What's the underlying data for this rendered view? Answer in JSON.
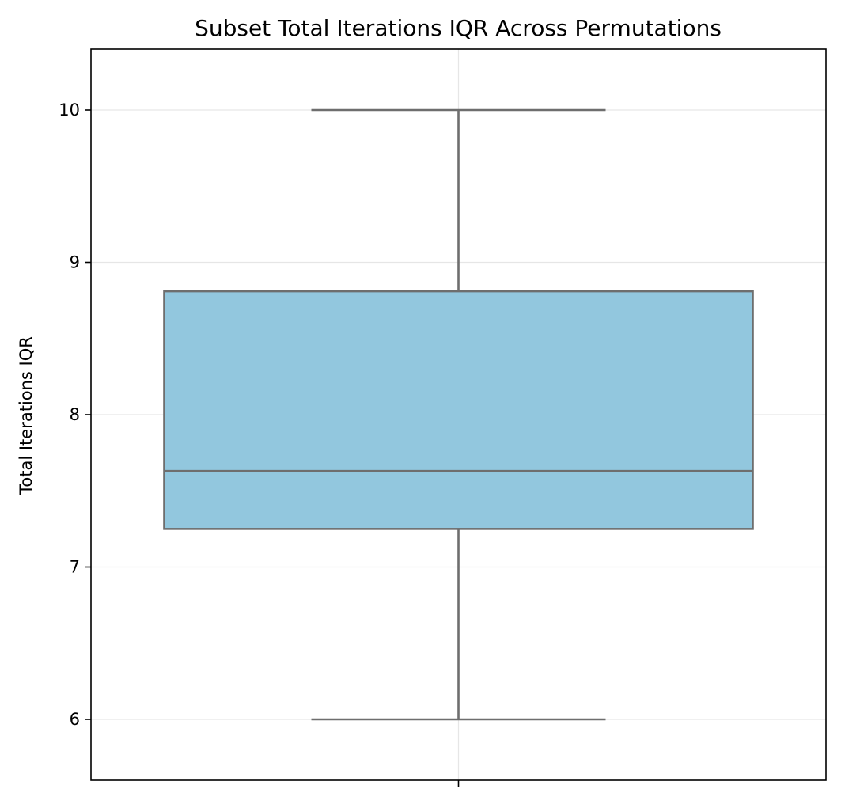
{
  "chart_data": {
    "type": "box",
    "title": "Subset Total Iterations IQR Across Permutations",
    "xlabel": "",
    "ylabel": "Total Iterations IQR",
    "ylim": [
      5.6,
      10.4
    ],
    "yticks": [
      6,
      7,
      8,
      9,
      10
    ],
    "yticklabels": [
      "6",
      "7",
      "8",
      "9",
      "10"
    ],
    "grid": true,
    "legend": "none",
    "box": {
      "whisker_low": 6.0,
      "q1": 7.25,
      "median": 7.63,
      "q3": 8.81,
      "whisker_high": 10.0
    },
    "colors": {
      "box_fill": "#92c7de",
      "box_edge": "#6e6e6e",
      "grid": "#e6e6e6",
      "axes": "#000000"
    }
  }
}
